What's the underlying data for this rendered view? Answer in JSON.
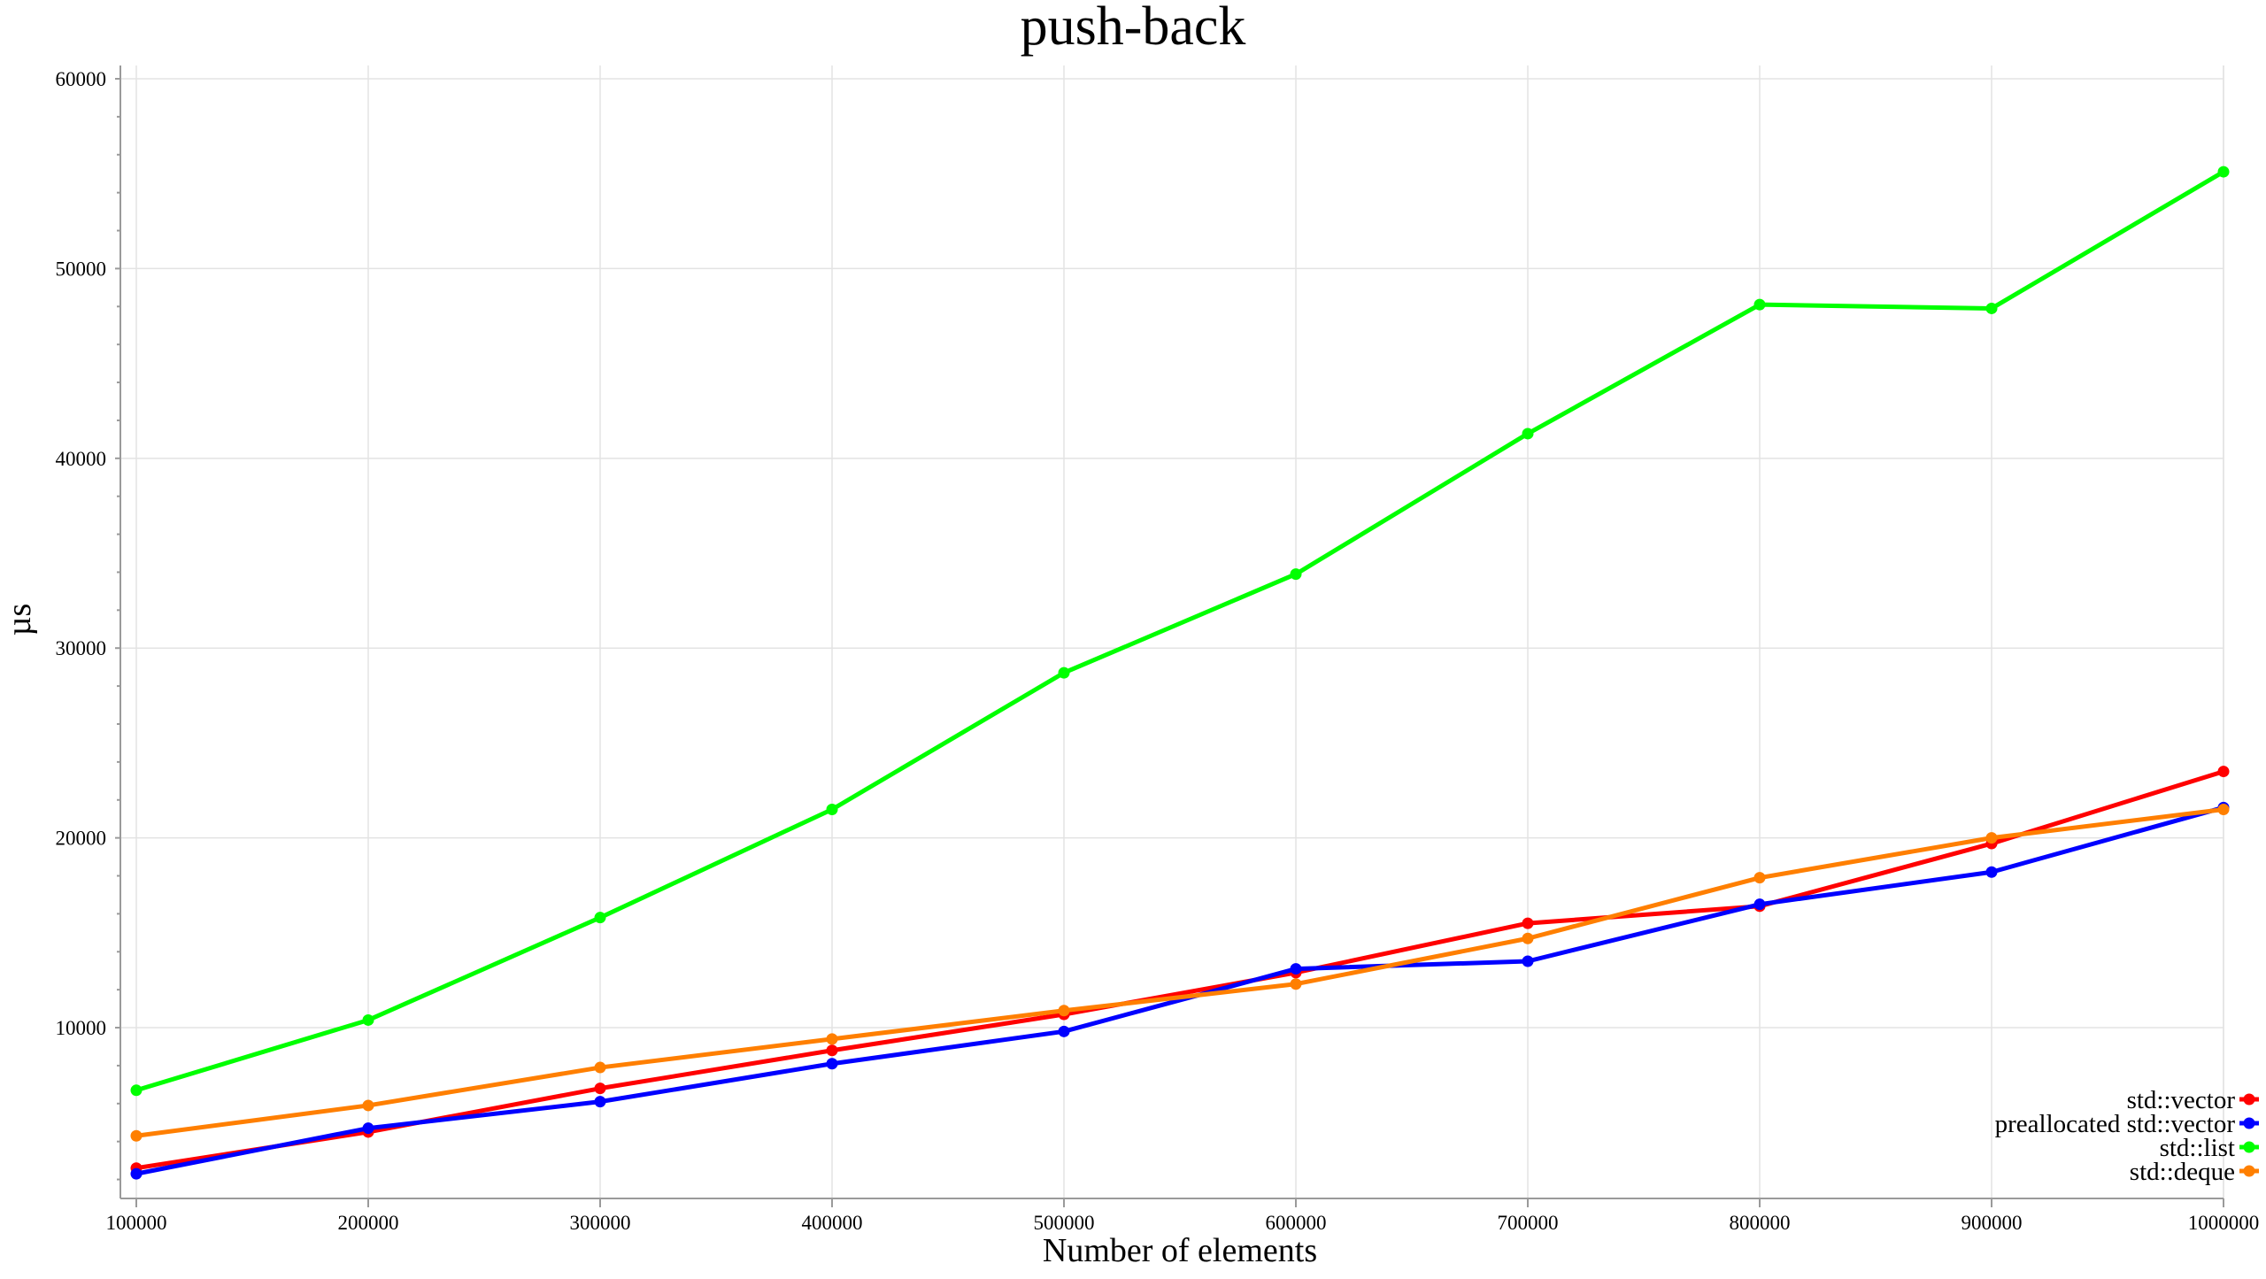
{
  "chart_data": {
    "type": "line",
    "title": "push-back",
    "xlabel": "Number of elements",
    "ylabel": "µs",
    "x": [
      100000,
      200000,
      300000,
      400000,
      500000,
      600000,
      700000,
      800000,
      900000,
      1000000
    ],
    "x_tick_labels": [
      "100000",
      "200000",
      "300000",
      "400000",
      "500000",
      "600000",
      "700000",
      "800000",
      "900000",
      "1000000"
    ],
    "xlim": [
      100000,
      1000000
    ],
    "y_ticks": [
      10000,
      20000,
      30000,
      40000,
      50000,
      60000
    ],
    "y_tick_labels": [
      "10000",
      "20000",
      "30000",
      "40000",
      "50000",
      "60000"
    ],
    "ylim": [
      1000,
      60700
    ],
    "grid": true,
    "legend_position": "bottom-right",
    "series": [
      {
        "name": "std::vector",
        "color": "#ff0000",
        "values": [
          2600,
          4500,
          6800,
          8800,
          10700,
          12900,
          15500,
          16400,
          19700,
          23500
        ]
      },
      {
        "name": "preallocated std::vector",
        "color": "#0000ff",
        "values": [
          2300,
          4700,
          6100,
          8100,
          9800,
          13100,
          13500,
          16500,
          18200,
          21600
        ]
      },
      {
        "name": "std::list",
        "color": "#00ff00",
        "values": [
          6700,
          10400,
          15800,
          21500,
          28700,
          33900,
          41300,
          48100,
          47900,
          55100
        ]
      },
      {
        "name": "std::deque",
        "color": "#ff7f00",
        "values": [
          4300,
          5900,
          7900,
          9400,
          10900,
          12300,
          14700,
          17900,
          20000,
          21500
        ]
      }
    ]
  }
}
